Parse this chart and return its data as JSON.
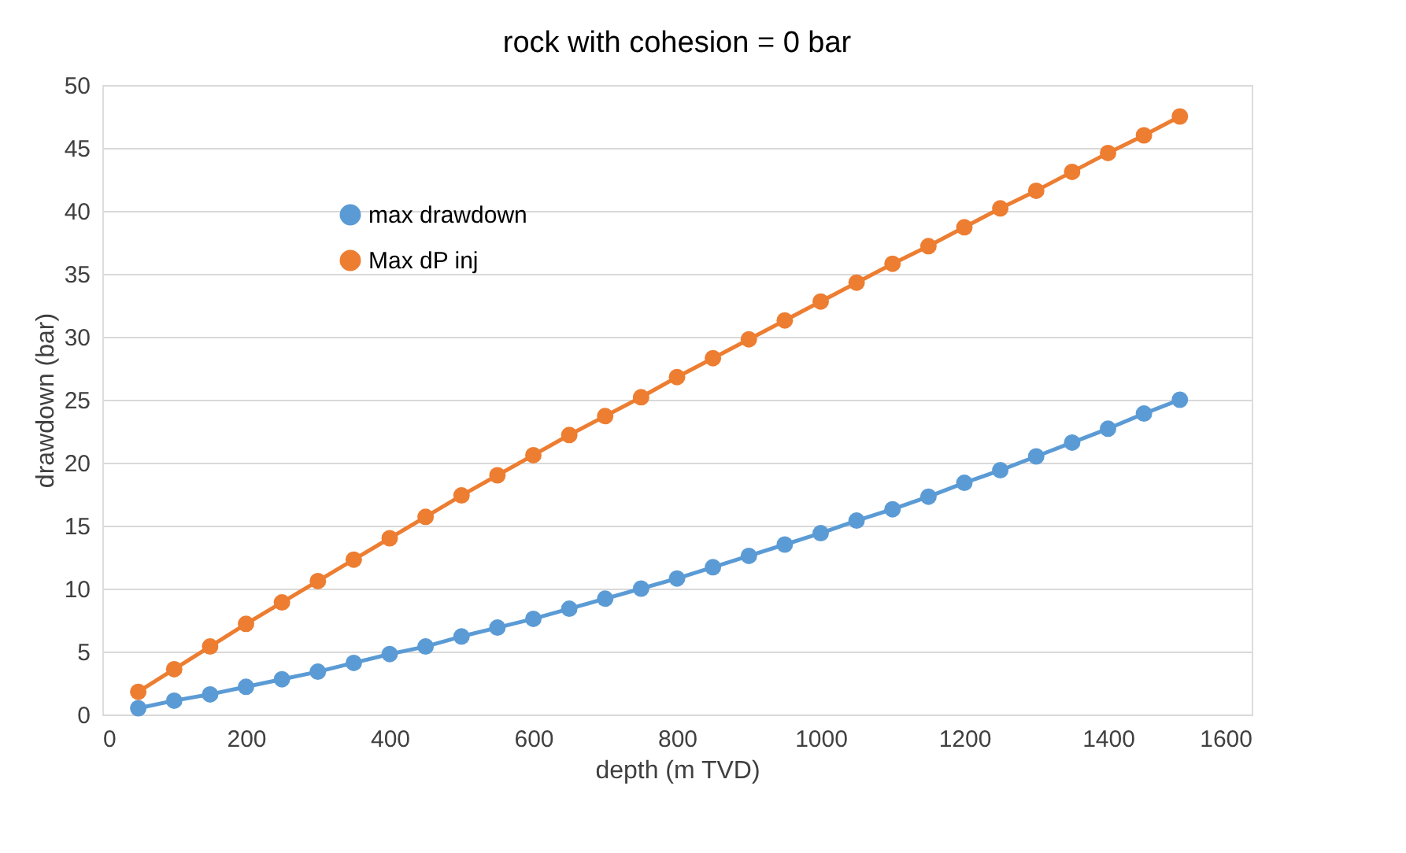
{
  "chart_data": {
    "type": "line",
    "title": "rock with cohesion = 0 bar",
    "xlabel": "depth (m TVD)",
    "ylabel": "drawdown (bar)",
    "x": [
      50,
      100,
      150,
      200,
      250,
      300,
      350,
      400,
      450,
      500,
      550,
      600,
      650,
      700,
      750,
      800,
      850,
      900,
      950,
      1000,
      1050,
      1100,
      1150,
      1200,
      1250,
      1300,
      1350,
      1400,
      1450,
      1500
    ],
    "series": [
      {
        "name": "max drawdown",
        "color": "#5b9bd5",
        "values": [
          0.5,
          1.1,
          1.6,
          2.2,
          2.8,
          3.4,
          4.1,
          4.8,
          5.4,
          6.2,
          6.9,
          7.6,
          8.4,
          9.2,
          10.0,
          10.8,
          11.7,
          12.6,
          13.5,
          14.4,
          15.4,
          16.3,
          17.3,
          18.4,
          19.4,
          20.5,
          21.6,
          22.7,
          23.9,
          25.0
        ]
      },
      {
        "name": "Max dP inj",
        "color": "#ed7d31",
        "values": [
          1.8,
          3.6,
          5.4,
          7.2,
          8.9,
          10.6,
          12.3,
          14.0,
          15.7,
          17.4,
          19.0,
          20.6,
          22.2,
          23.7,
          25.2,
          26.8,
          28.3,
          29.8,
          31.3,
          32.8,
          34.3,
          35.8,
          37.2,
          38.7,
          40.2,
          41.6,
          43.1,
          44.6,
          46.0,
          47.5
        ]
      }
    ],
    "xlim": [
      0,
      1600
    ],
    "xticks": [
      0,
      200,
      400,
      600,
      800,
      1000,
      1200,
      1400,
      1600
    ],
    "ylim": [
      0,
      50
    ],
    "yticks": [
      0,
      5,
      10,
      15,
      20,
      25,
      30,
      35,
      40,
      45,
      50
    ],
    "grid": "y",
    "legend": "top left",
    "marker": "circle",
    "line_style": "solid"
  }
}
